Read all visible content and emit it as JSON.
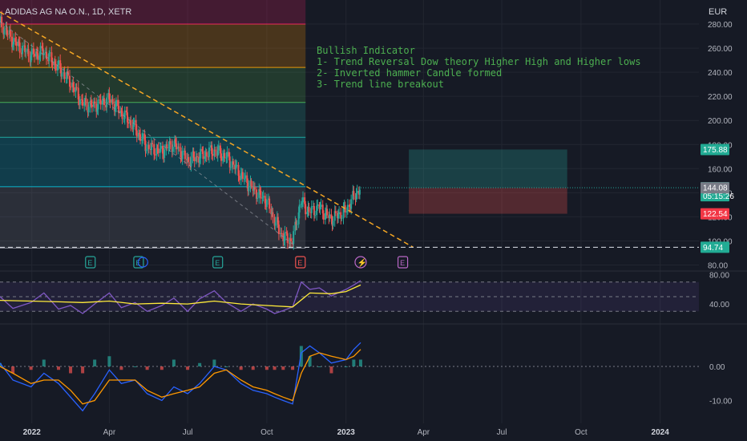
{
  "header": {
    "symbol": "ADIDAS AG NA O.N., 1D, XETR",
    "currency": "EUR"
  },
  "annotation": {
    "title": "Bullish Indicator",
    "points": [
      "1- Trend Reversal Dow theory Higher High and Higher lows",
      "2- Inverted hammer Candle formed",
      "3- Trend line breakout"
    ]
  },
  "colors": {
    "background": "#161a25",
    "up": "#26a69a",
    "down": "#ef5350",
    "trendline": "#f5a623",
    "rsi": "#7e57c2",
    "rsi_ma": "#ffeb3b",
    "macd": "#2962ff",
    "signal": "#ff9800",
    "note": "#4caf50"
  },
  "chart_data": [
    {
      "type": "candlestick",
      "title": "ADIDAS AG NA O.N., 1D, XETR",
      "y_unit": "EUR",
      "ylim": [
        75,
        300
      ],
      "y_ticks": [
        "80.00",
        "100.00",
        "120.00",
        "140.00",
        "160.00",
        "180.00",
        "200.00",
        "220.00",
        "240.00",
        "260.00",
        "280.00"
      ],
      "x_ticks": [
        "2022",
        "Apr",
        "Jul",
        "Oct",
        "2023",
        "Apr",
        "Jul",
        "Oct",
        "2024"
      ],
      "x_tick_dates": [
        "2022-01-01",
        "2022-04-01",
        "2022-07-01",
        "2022-10-01",
        "2023-01-01",
        "2023-04-01",
        "2023-07-01",
        "2023-10-01",
        "2024-01-01"
      ],
      "xlim": [
        "2021-11-25",
        "2024-02-15"
      ],
      "close_series": {
        "dates": [
          "2021-11-25",
          "2021-12-10",
          "2021-12-31",
          "2022-01-15",
          "2022-02-01",
          "2022-02-15",
          "2022-03-01",
          "2022-03-15",
          "2022-04-01",
          "2022-04-15",
          "2022-05-01",
          "2022-05-15",
          "2022-06-01",
          "2022-06-15",
          "2022-07-01",
          "2022-07-15",
          "2022-08-01",
          "2022-08-15",
          "2022-09-01",
          "2022-09-15",
          "2022-10-01",
          "2022-10-10",
          "2022-10-20",
          "2022-10-31",
          "2022-11-10",
          "2022-11-20",
          "2022-12-01",
          "2022-12-15",
          "2023-01-01",
          "2023-01-10",
          "2023-01-18"
        ],
        "close": [
          282,
          266,
          254,
          257,
          244,
          232,
          214,
          212,
          218,
          207,
          194,
          178,
          174,
          181,
          167,
          170,
          175,
          170,
          155,
          143,
          133,
          118,
          103,
          100,
          133,
          124,
          128,
          118,
          125,
          136,
          144.14
        ]
      },
      "trendline": {
        "from": [
          "2021-11-25",
          290
        ],
        "to": [
          "2023-03-20",
          94.74
        ]
      },
      "horizontal_line": 94.74,
      "fibonacci_bands": [
        {
          "top": 300,
          "bottom": 280,
          "color": "#e91e63"
        },
        {
          "top": 280,
          "bottom": 244,
          "color": "#ff9800"
        },
        {
          "top": 244,
          "bottom": 215,
          "color": "#4caf50"
        },
        {
          "top": 215,
          "bottom": 186,
          "color": "#26a69a"
        },
        {
          "top": 186,
          "bottom": 145,
          "color": "#00bcd4"
        },
        {
          "top": 145,
          "bottom": 94,
          "color": "#787b86"
        }
      ],
      "fib_end_date": "2022-11-15",
      "position_box": {
        "start": "2023-03-15",
        "end": "2023-09-15",
        "entry": 144.08,
        "target": 175.88,
        "stop": 122.54
      },
      "price_labels": [
        {
          "text": "175.88",
          "value": 175.88,
          "bg": "#22ab94"
        },
        {
          "text": "144.14",
          "value": 144.14,
          "bg": "#22ab94",
          "sub": "05:15:26"
        },
        {
          "text": "144.08",
          "value": 144.08,
          "bg": "#787b86"
        },
        {
          "text": "122.54",
          "value": 122.54,
          "bg": "#f23645"
        },
        {
          "text": "94.74",
          "value": 94.74,
          "bg": "#22ab94"
        }
      ],
      "events": [
        {
          "date": "2022-03-10",
          "kind": "E",
          "color": "#26a69a"
        },
        {
          "date": "2022-05-05",
          "kind": "E",
          "color": "#26a69a"
        },
        {
          "date": "2022-05-10",
          "kind": "D",
          "color": "#2962ff"
        },
        {
          "date": "2022-08-05",
          "kind": "E",
          "color": "#26a69a"
        },
        {
          "date": "2022-11-09",
          "kind": "E",
          "color": "#ef5350"
        },
        {
          "date": "2023-01-18",
          "kind": "⚡",
          "color": "#ba68c8"
        },
        {
          "date": "2023-03-08",
          "kind": "E",
          "color": "#ba68c8"
        }
      ]
    },
    {
      "type": "line",
      "name_hint": "rsi-pane",
      "ylim": [
        15,
        85
      ],
      "y_ticks": [
        "40.00",
        "80.00"
      ],
      "bands": [
        70,
        50,
        30
      ],
      "series": [
        {
          "dates": [
            "2021-11-25",
            "2021-12-10",
            "2021-12-31",
            "2022-01-15",
            "2022-02-01",
            "2022-02-15",
            "2022-03-01",
            "2022-03-15",
            "2022-04-01",
            "2022-04-15",
            "2022-05-01",
            "2022-05-15",
            "2022-06-01",
            "2022-06-15",
            "2022-07-01",
            "2022-07-15",
            "2022-08-01",
            "2022-08-15",
            "2022-09-01",
            "2022-09-15",
            "2022-10-01",
            "2022-10-10",
            "2022-10-20",
            "2022-10-31",
            "2022-11-10",
            "2022-11-20",
            "2022-12-01",
            "2022-12-15",
            "2023-01-01",
            "2023-01-10",
            "2023-01-18"
          ],
          "values": [
            50,
            34,
            42,
            55,
            33,
            38,
            27,
            40,
            55,
            35,
            42,
            30,
            38,
            48,
            30,
            47,
            58,
            42,
            30,
            40,
            33,
            27,
            31,
            36,
            70,
            60,
            62,
            51,
            60,
            66,
            72
          ]
        },
        {
          "dates": [
            "2021-11-25",
            "2021-12-31",
            "2022-02-01",
            "2022-03-01",
            "2022-04-01",
            "2022-05-01",
            "2022-06-01",
            "2022-07-01",
            "2022-08-01",
            "2022-09-01",
            "2022-10-01",
            "2022-10-31",
            "2022-11-20",
            "2022-12-15",
            "2023-01-01",
            "2023-01-18"
          ],
          "values": [
            45,
            44,
            43,
            42,
            44,
            40,
            41,
            40,
            44,
            40,
            38,
            36,
            55,
            54,
            57,
            66
          ]
        }
      ]
    },
    {
      "type": "bar",
      "name_hint": "macd-pane",
      "ylim": [
        -16,
        12
      ],
      "y_ticks": [
        "0.00",
        "-10.00"
      ],
      "series": [
        {
          "dates": [
            "2021-11-25",
            "2021-12-10",
            "2021-12-31",
            "2022-01-15",
            "2022-02-01",
            "2022-02-15",
            "2022-03-01",
            "2022-03-15",
            "2022-04-01",
            "2022-04-15",
            "2022-05-01",
            "2022-05-15",
            "2022-06-01",
            "2022-06-15",
            "2022-07-01",
            "2022-07-15",
            "2022-08-01",
            "2022-08-15",
            "2022-09-01",
            "2022-09-15",
            "2022-10-01",
            "2022-10-10",
            "2022-10-20",
            "2022-10-31",
            "2022-11-10",
            "2022-11-20",
            "2022-12-01",
            "2022-12-15",
            "2023-01-01",
            "2023-01-10",
            "2023-01-18"
          ],
          "values": [
            1,
            -4,
            -6,
            -2,
            -5,
            -9,
            -13,
            -8,
            -1,
            -5,
            -4,
            -8,
            -10,
            -6,
            -8,
            -5,
            0,
            -1,
            -5,
            -7,
            -8,
            -9,
            -10,
            -11,
            4,
            6,
            4,
            1,
            2,
            5,
            7
          ]
        },
        {
          "dates": [
            "2021-11-25",
            "2021-12-10",
            "2021-12-31",
            "2022-01-15",
            "2022-02-01",
            "2022-02-15",
            "2022-03-01",
            "2022-03-15",
            "2022-04-01",
            "2022-04-15",
            "2022-05-01",
            "2022-05-15",
            "2022-06-01",
            "2022-06-15",
            "2022-07-01",
            "2022-07-15",
            "2022-08-01",
            "2022-08-15",
            "2022-09-01",
            "2022-09-15",
            "2022-10-01",
            "2022-10-10",
            "2022-10-20",
            "2022-10-31",
            "2022-11-10",
            "2022-11-20",
            "2022-12-01",
            "2022-12-15",
            "2023-01-01",
            "2023-01-10",
            "2023-01-18"
          ],
          "values": [
            0,
            -2,
            -5,
            -4,
            -4,
            -7,
            -11,
            -10,
            -4,
            -4,
            -4,
            -7,
            -9,
            -8,
            -7,
            -6,
            -2,
            -1,
            -4,
            -6,
            -7,
            -8,
            -9,
            -10,
            -2,
            3,
            4,
            3,
            2,
            3,
            5
          ]
        }
      ],
      "histogram_dates": [
        "2021-11-25",
        "2021-12-10",
        "2021-12-31",
        "2022-01-15",
        "2022-02-01",
        "2022-02-15",
        "2022-03-01",
        "2022-03-15",
        "2022-04-01",
        "2022-04-15",
        "2022-05-01",
        "2022-05-15",
        "2022-06-01",
        "2022-06-15",
        "2022-07-01",
        "2022-07-15",
        "2022-08-01",
        "2022-08-15",
        "2022-09-01",
        "2022-09-15",
        "2022-10-01",
        "2022-10-10",
        "2022-10-20",
        "2022-10-31",
        "2022-11-10",
        "2022-11-20",
        "2022-12-01",
        "2022-12-15",
        "2023-01-01",
        "2023-01-10",
        "2023-01-18"
      ],
      "histogram": [
        1,
        -2,
        -1,
        2,
        -1,
        -2,
        -2,
        2,
        3,
        -1,
        0,
        -1,
        -1,
        2,
        -1,
        1,
        2,
        0,
        -1,
        -1,
        -1,
        -1,
        -1,
        -1,
        6,
        3,
        0,
        -2,
        0,
        2,
        2
      ]
    }
  ]
}
